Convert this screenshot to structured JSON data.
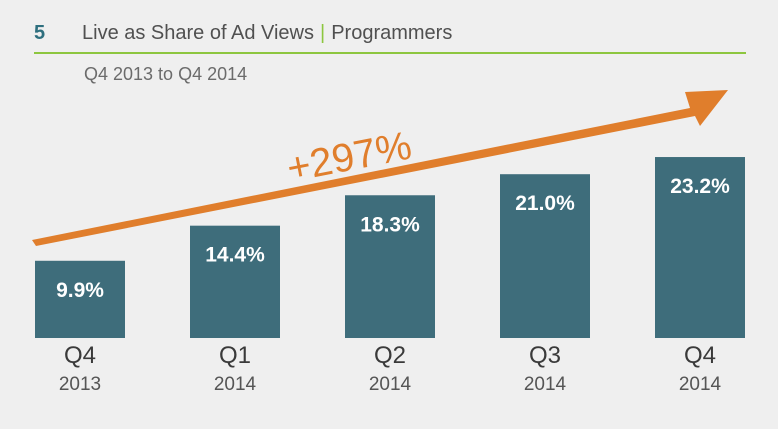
{
  "header": {
    "number": "5",
    "title": "Live as Share of Ad Views",
    "separator": "|",
    "section": "Programmers"
  },
  "subtitle": "Q4 2013 to Q4 2014",
  "colors": {
    "bar": "#3e6d7b",
    "arrow": "#e07e2c",
    "rule": "#8dc63f",
    "number": "#2e6f7e"
  },
  "chart_data": {
    "type": "bar",
    "categories": [
      {
        "quarter": "Q4",
        "year": "2013"
      },
      {
        "quarter": "Q1",
        "year": "2014"
      },
      {
        "quarter": "Q2",
        "year": "2014"
      },
      {
        "quarter": "Q3",
        "year": "2014"
      },
      {
        "quarter": "Q4",
        "year": "2014"
      }
    ],
    "values": [
      9.9,
      14.4,
      18.3,
      21.0,
      23.2
    ],
    "value_labels": [
      "9.9%",
      "14.4%",
      "18.3%",
      "21.0%",
      "23.2%"
    ],
    "annotation": "+297%",
    "grid": false
  }
}
